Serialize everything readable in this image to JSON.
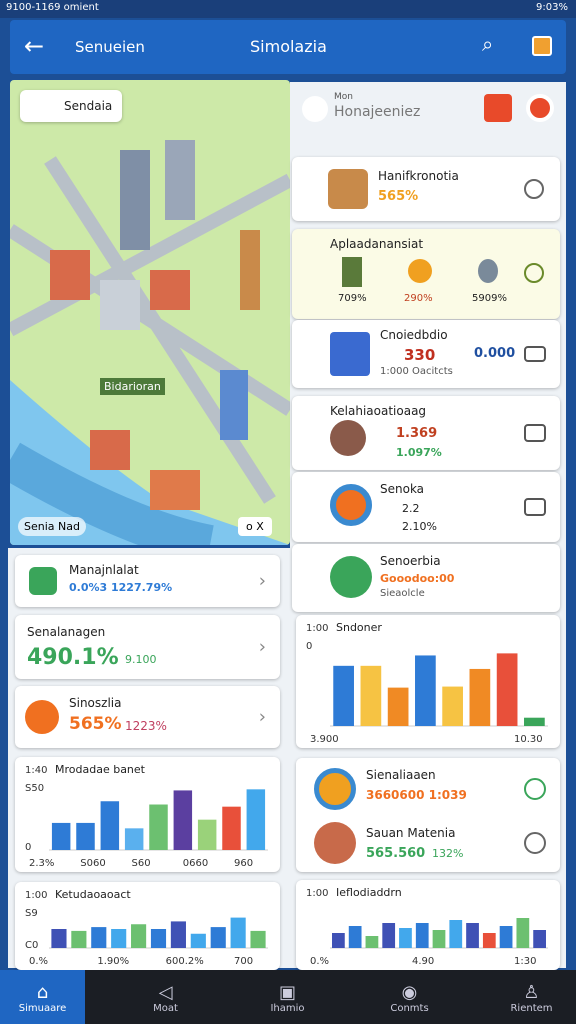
{
  "status": {
    "left": "9100-1169 omient",
    "right": "9:03%"
  },
  "appbar": {
    "back_label": "Senueien",
    "title": "Simolazia"
  },
  "map": {
    "chip": "Sendaia",
    "label": "Bidarioran",
    "footer": "Senia Nad",
    "controls": "o X"
  },
  "left_cards": [
    {
      "title": "Manajnlalat",
      "value": "0.0%3 1227.79%"
    },
    {
      "title": "Senalanagen",
      "value": "490.1%",
      "sub": "9.100"
    },
    {
      "title": "Sinoszlia",
      "value": "565%",
      "sub": "1223%"
    }
  ],
  "left_charts": [
    {
      "title": "Mrodadae banet",
      "ytop": "1:40",
      "ylabels": [
        "S50",
        "0"
      ],
      "xlabels": [
        "2.3%",
        "S060",
        "S60",
        "0660",
        "960"
      ],
      "ylim": [
        0,
        60
      ],
      "values": [
        25,
        25,
        45,
        20,
        42,
        55,
        28,
        40,
        56
      ],
      "colors": [
        "#2e7bd6",
        "#2e7bd6",
        "#2e7bd6",
        "#5ab0ee",
        "#6cc070",
        "#5b3fa0",
        "#9ad27a",
        "#e8503a",
        "#42a8ec"
      ]
    },
    {
      "title": "Ketudaoaoact",
      "ytop": "1:00",
      "ylabels": [
        "S9",
        "C0"
      ],
      "xlabels": [
        "0.%",
        "1.90%",
        "600.2%",
        "700"
      ],
      "ylim": [
        0,
        40
      ],
      "values": [
        20,
        18,
        22,
        20,
        25,
        20,
        28,
        15,
        22,
        32,
        18
      ],
      "colors": [
        "#3f51b5",
        "#6cc070",
        "#2e7bd6",
        "#42a8ec",
        "#6cc070",
        "#2e7bd6",
        "#3f51b5",
        "#42a8ec",
        "#2e7bd6",
        "#42a8ec",
        "#6cc070"
      ]
    }
  ],
  "panel_header": {
    "small": "Mon",
    "title": "Honajeeniez"
  },
  "right_cards": [
    {
      "title": "Hanifkronotia",
      "value": "565%"
    },
    {
      "title": "Aplaadanansiat",
      "items": [
        "709%",
        "290%",
        "5909%"
      ]
    },
    {
      "title": "Cnoiedbdio",
      "value": "330",
      "value2": "0.000",
      "sub": "1:000 Oacitcts"
    },
    {
      "title": "Kelahiaoatioaag",
      "value": "1.369",
      "value2": "1.097%"
    },
    {
      "title": "Senoka",
      "value": "2.2",
      "value2": "2.10%"
    },
    {
      "title": "Senoerbia",
      "value": "Gooodoo:00",
      "sub": "Sieaolcle"
    }
  ],
  "right_list": [
    {
      "title": "Sienaliaaen",
      "value": "3660600 1:039"
    },
    {
      "title": "Sauan Matenia",
      "value": "565.560",
      "value2": "132%"
    }
  ],
  "right_charts": [
    {
      "title": "Sndoner",
      "ytop": "1:00",
      "ylabels": [
        "0"
      ],
      "xlabels": [
        "3.900",
        "10.30"
      ],
      "ylim": [
        0,
        80
      ],
      "values": [
        58,
        58,
        37,
        68,
        38,
        55,
        70,
        8
      ],
      "colors": [
        "#2e7bd6",
        "#f6c343",
        "#f08a24",
        "#2e7bd6",
        "#f6c343",
        "#f08a24",
        "#e8503a",
        "#3aa55a"
      ]
    },
    {
      "title": "Ieflodiaddrn",
      "ytop": "1:00",
      "ylabels": [],
      "xlabels": [
        "0.%",
        "4.90",
        "1:30"
      ],
      "ylim": [
        0,
        40
      ],
      "values": [
        15,
        22,
        12,
        25,
        20,
        25,
        18,
        28,
        25,
        15,
        22,
        30,
        18
      ],
      "colors": [
        "#3f51b5",
        "#2e7bd6",
        "#6cc070",
        "#3f51b5",
        "#42a8ec",
        "#2e7bd6",
        "#6cc070",
        "#42a8ec",
        "#3f51b5",
        "#e8503a",
        "#2e7bd6",
        "#6cc070",
        "#3f51b5"
      ]
    }
  ],
  "nav": [
    "Simuaare",
    "Moat",
    "Ihamio",
    "Conmts",
    "Rientem"
  ]
}
